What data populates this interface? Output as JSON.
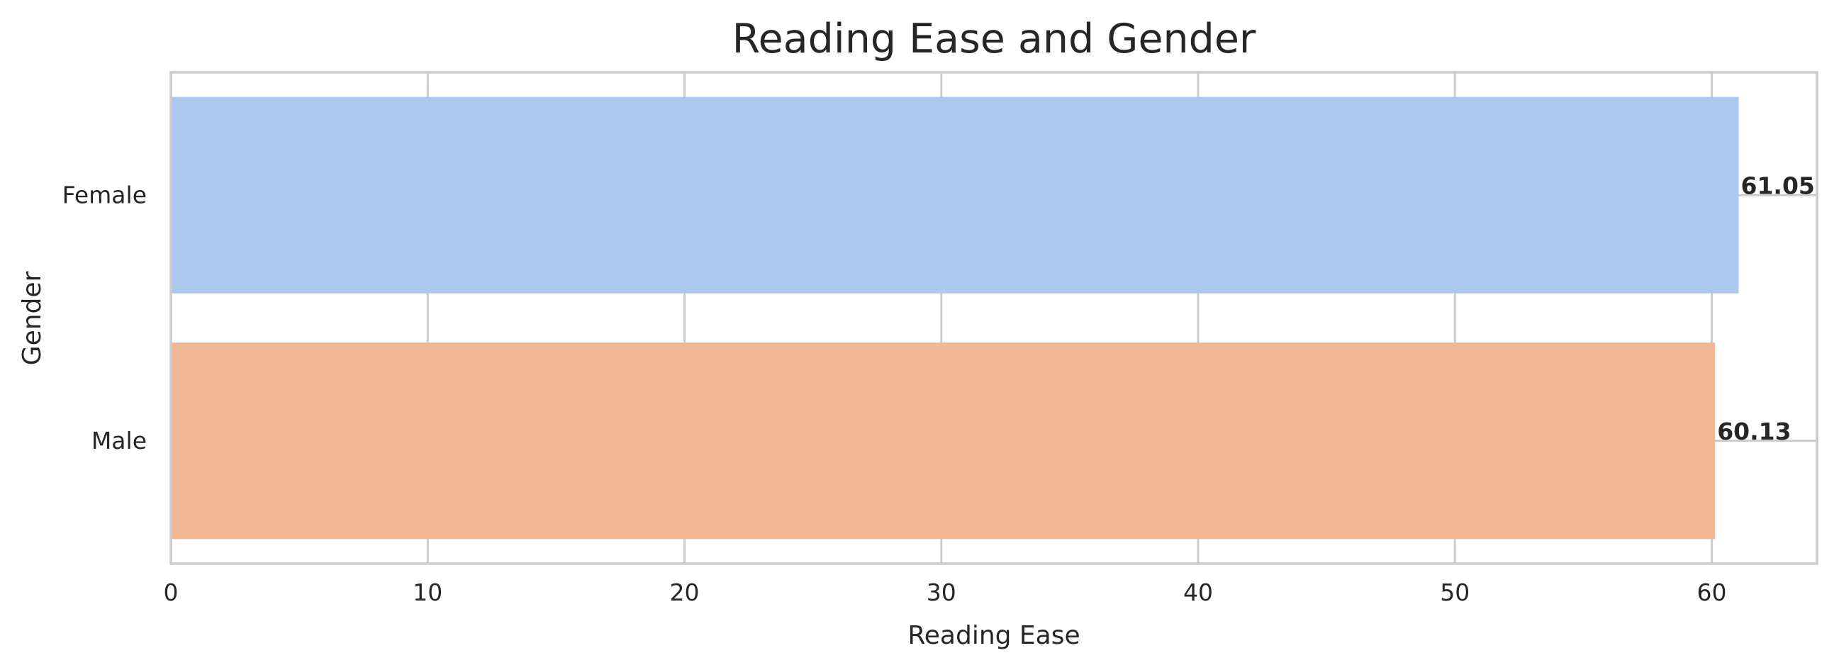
{
  "chart_data": {
    "type": "bar",
    "orientation": "horizontal",
    "title": "Reading Ease and Gender",
    "xlabel": "Reading Ease",
    "ylabel": "Gender",
    "categories": [
      "Female",
      "Male"
    ],
    "values": [
      61.05,
      60.13
    ],
    "value_labels": [
      "61.05",
      "60.13"
    ],
    "colors": [
      "#abc9ed",
      "#f0b894"
    ],
    "xlim": [
      0,
      64.1
    ],
    "xticks": [
      0,
      10,
      20,
      30,
      40,
      50,
      60
    ],
    "xtick_labels": [
      "0",
      "10",
      "20",
      "30",
      "40",
      "50",
      "60"
    ],
    "grid": true,
    "legend": "none"
  }
}
